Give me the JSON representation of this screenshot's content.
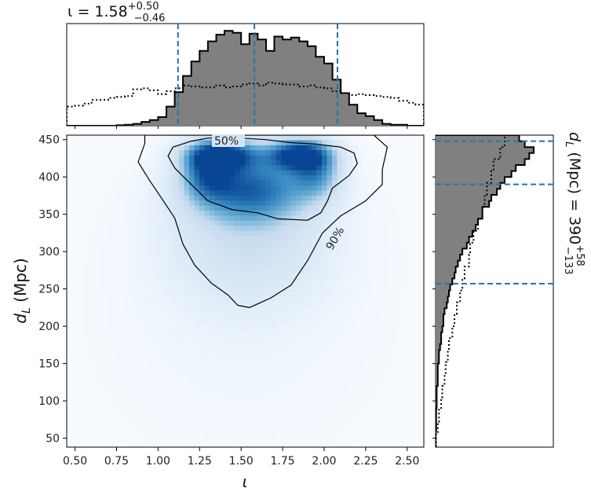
{
  "chart_data": {
    "type": "heatmap",
    "title_top_prefix": "ι = 1.58",
    "title_top_sup": "+0.50",
    "title_top_sub": "−0.46",
    "title_right_prefix": "d",
    "title_right_sub_L": "L",
    "title_right_mid": " (Mpc) = 390",
    "title_right_sup": "+58",
    "title_right_sub": "−133",
    "xlabel": "ι",
    "ylabel_main": "d",
    "ylabel_sub": "L",
    "ylabel_unit": " (Mpc)",
    "xlim": [
      0.45,
      2.6
    ],
    "ylim": [
      38,
      456
    ],
    "xticks": [
      "0.50",
      "0.75",
      "1.00",
      "1.25",
      "1.50",
      "1.75",
      "2.00",
      "2.25",
      "2.50"
    ],
    "xtick_values": [
      0.5,
      0.75,
      1.0,
      1.25,
      1.5,
      1.75,
      2.0,
      2.25,
      2.5
    ],
    "yticks": [
      "50",
      "100",
      "150",
      "200",
      "250",
      "300",
      "350",
      "400",
      "450"
    ],
    "ytick_values": [
      50,
      100,
      150,
      200,
      250,
      300,
      350,
      400,
      450
    ],
    "contour_labels": [
      "50%",
      "90%"
    ],
    "iota_median": 1.58,
    "iota_interval": [
      1.12,
      2.08
    ],
    "dL_median": 390,
    "dL_interval": [
      257,
      448
    ],
    "iota_posterior_hist": {
      "bin_edges": [
        0.45,
        0.5,
        0.55,
        0.6,
        0.65,
        0.7,
        0.75,
        0.8,
        0.85,
        0.9,
        0.95,
        1.0,
        1.05,
        1.1,
        1.15,
        1.2,
        1.25,
        1.3,
        1.35,
        1.4,
        1.45,
        1.5,
        1.55,
        1.6,
        1.65,
        1.7,
        1.75,
        1.8,
        1.85,
        1.9,
        1.95,
        2.0,
        2.05,
        2.1,
        2.15,
        2.2,
        2.25,
        2.3,
        2.35,
        2.4,
        2.45,
        2.5,
        2.55,
        2.6
      ],
      "heights": [
        0,
        0,
        0,
        0,
        0,
        0,
        0.005,
        0.01,
        0.02,
        0.04,
        0.06,
        0.09,
        0.2,
        0.35,
        0.52,
        0.67,
        0.78,
        0.88,
        0.95,
        0.99,
        0.97,
        0.85,
        0.96,
        0.9,
        0.78,
        0.93,
        0.9,
        0.92,
        0.88,
        0.83,
        0.72,
        0.65,
        0.48,
        0.34,
        0.22,
        0.13,
        0.1,
        0.06,
        0.02,
        0.01,
        0.01,
        0,
        0
      ]
    },
    "iota_prior_hist": {
      "bin_edges": [
        0.45,
        0.5,
        0.55,
        0.6,
        0.65,
        0.7,
        0.75,
        0.8,
        0.85,
        0.9,
        0.95,
        1.0,
        1.05,
        1.1,
        1.15,
        1.2,
        1.25,
        1.3,
        1.35,
        1.4,
        1.45,
        1.5,
        1.55,
        1.6,
        1.65,
        1.7,
        1.75,
        1.8,
        1.85,
        1.9,
        1.95,
        2.0,
        2.05,
        2.1,
        2.15,
        2.2,
        2.25,
        2.3,
        2.35,
        2.4,
        2.45,
        2.5,
        2.55,
        2.6
      ],
      "heights": [
        0.2,
        0.21,
        0.23,
        0.27,
        0.27,
        0.29,
        0.3,
        0.31,
        0.38,
        0.39,
        0.37,
        0.33,
        0.36,
        0.39,
        0.42,
        0.41,
        0.4,
        0.4,
        0.42,
        0.4,
        0.41,
        0.43,
        0.44,
        0.42,
        0.45,
        0.44,
        0.43,
        0.43,
        0.41,
        0.42,
        0.4,
        0.39,
        0.36,
        0.34,
        0.32,
        0.33,
        0.32,
        0.31,
        0.3,
        0.29,
        0.26,
        0.24,
        0.22
      ]
    },
    "dL_posterior_hist": {
      "bin_edges": [
        456,
        448,
        440,
        432,
        424,
        416,
        408,
        400,
        392,
        384,
        376,
        368,
        360,
        352,
        344,
        336,
        328,
        320,
        312,
        304,
        296,
        288,
        280,
        272,
        264,
        256,
        248,
        240,
        232,
        224,
        216,
        208,
        200,
        192,
        184,
        176,
        168,
        160,
        150,
        120,
        90,
        60,
        38
      ],
      "widths": [
        0.75,
        0.8,
        0.88,
        0.84,
        0.8,
        0.72,
        0.68,
        0.62,
        0.58,
        0.55,
        0.5,
        0.48,
        0.42,
        0.42,
        0.38,
        0.36,
        0.33,
        0.3,
        0.28,
        0.24,
        0.22,
        0.2,
        0.18,
        0.17,
        0.15,
        0.13,
        0.12,
        0.11,
        0.1,
        0.08,
        0.07,
        0.07,
        0.06,
        0.05,
        0.05,
        0.04,
        0.03,
        0.03,
        0.02,
        0.01,
        0.005,
        0
      ]
    },
    "dL_prior_hist": {
      "bin_edges": [
        456,
        440,
        424,
        408,
        392,
        376,
        360,
        344,
        328,
        312,
        296,
        280,
        264,
        248,
        232,
        216,
        200,
        184,
        168,
        152,
        136,
        120,
        104,
        88,
        72,
        56,
        38
      ],
      "widths": [
        0.62,
        0.58,
        0.52,
        0.5,
        0.46,
        0.44,
        0.42,
        0.38,
        0.34,
        0.31,
        0.3,
        0.26,
        0.24,
        0.22,
        0.19,
        0.17,
        0.15,
        0.12,
        0.11,
        0.09,
        0.08,
        0.06,
        0.05,
        0.03,
        0.02,
        0.005
      ]
    },
    "density_blobs": [
      {
        "x": 1.38,
        "y": 430,
        "sx": 0.14,
        "sy": 14,
        "w": 1.0
      },
      {
        "x": 1.85,
        "y": 430,
        "sx": 0.13,
        "sy": 14,
        "w": 1.0
      },
      {
        "x": 1.55,
        "y": 385,
        "sx": 0.24,
        "sy": 30,
        "w": 0.75
      },
      {
        "x": 1.3,
        "y": 405,
        "sx": 0.1,
        "sy": 22,
        "w": 0.55
      },
      {
        "x": 1.95,
        "y": 405,
        "sx": 0.1,
        "sy": 22,
        "w": 0.5
      },
      {
        "x": 1.55,
        "y": 320,
        "sx": 0.35,
        "sy": 60,
        "w": 0.25
      },
      {
        "x": 1.5,
        "y": 200,
        "sx": 0.55,
        "sy": 110,
        "w": 0.06
      }
    ],
    "contour_50": [
      [
        1.3,
        452
      ],
      [
        1.2,
        448
      ],
      [
        1.09,
        440
      ],
      [
        1.06,
        428
      ],
      [
        1.1,
        412
      ],
      [
        1.2,
        390
      ],
      [
        1.3,
        368
      ],
      [
        1.45,
        356
      ],
      [
        1.6,
        352
      ],
      [
        1.72,
        344
      ],
      [
        1.9,
        342
      ],
      [
        1.98,
        352
      ],
      [
        2.02,
        368
      ],
      [
        2.05,
        385
      ],
      [
        2.15,
        402
      ],
      [
        2.2,
        418
      ],
      [
        2.18,
        432
      ],
      [
        2.1,
        440
      ],
      [
        1.95,
        444
      ],
      [
        1.8,
        446
      ],
      [
        1.65,
        450
      ],
      [
        1.5,
        452
      ],
      [
        1.3,
        452
      ]
    ],
    "contour_90": [
      [
        0.92,
        445
      ],
      [
        0.88,
        420
      ],
      [
        0.95,
        395
      ],
      [
        1.02,
        372
      ],
      [
        1.1,
        345
      ],
      [
        1.15,
        310
      ],
      [
        1.22,
        282
      ],
      [
        1.32,
        258
      ],
      [
        1.42,
        242
      ],
      [
        1.48,
        228
      ],
      [
        1.55,
        225
      ],
      [
        1.68,
        238
      ],
      [
        1.8,
        255
      ],
      [
        1.9,
        288
      ],
      [
        1.99,
        325
      ],
      [
        2.1,
        348
      ],
      [
        2.25,
        368
      ],
      [
        2.35,
        390
      ],
      [
        2.35,
        410
      ],
      [
        2.38,
        440
      ],
      [
        2.3,
        456
      ],
      [
        0.92,
        456
      ]
    ]
  }
}
